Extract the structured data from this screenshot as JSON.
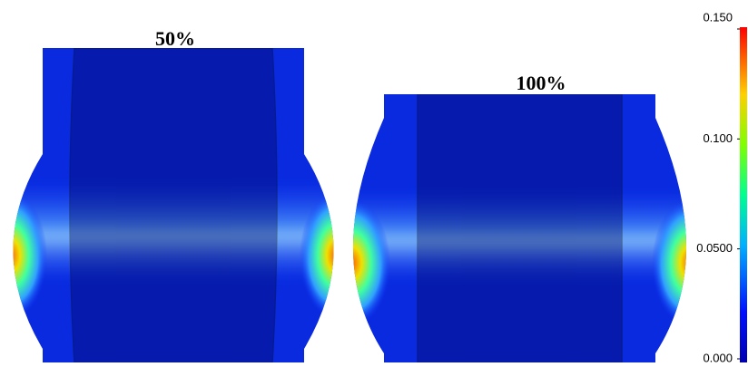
{
  "panels": [
    {
      "label": "50%"
    },
    {
      "label": "100%"
    }
  ],
  "colorbar": {
    "range": [
      0,
      0.15
    ],
    "ticks": [
      {
        "value": 0,
        "label": "0.000"
      },
      {
        "value": 0.05,
        "label": "0.0500"
      },
      {
        "value": 0.1,
        "label": "0.100"
      },
      {
        "value": 0.15,
        "label": "0.150"
      }
    ]
  }
}
